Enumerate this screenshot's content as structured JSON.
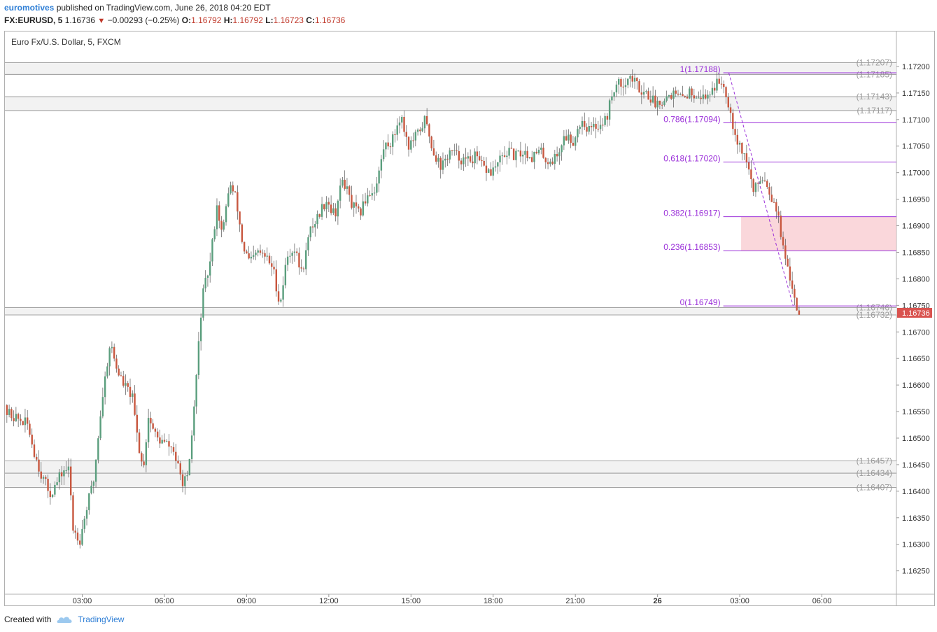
{
  "header": {
    "publisher": "euromotives",
    "published_text": "published on TradingView.com, June 26, 2018 04:20 EDT",
    "symbol": "FX:EURUSD, 5",
    "last": "1.16736",
    "change": "−0.00293 (−0.25%)",
    "o_label": "O:",
    "o_value": "1.16792",
    "h_label": "H:",
    "h_value": "1.16792",
    "l_label": "L:",
    "l_value": "1.16723",
    "c_label": "C:",
    "c_value": "1.16736"
  },
  "footer": {
    "created_with": "Created with",
    "brand": "TradingView"
  },
  "colors": {
    "up": "#5a9e7d",
    "down": "#c8573f",
    "fib": "#9b30d9",
    "zone": "#f8c9cf",
    "level_line": "#888888",
    "last_badge": "#d9534f"
  },
  "chart_data": {
    "type": "candlestick",
    "title": "Euro Fx/U.S. Dollar, 5, FXCM",
    "ylim": [
      1.16225,
      1.1723
    ],
    "y_ticks": [
      "1.17200",
      "1.17150",
      "1.17100",
      "1.17050",
      "1.17000",
      "1.16950",
      "1.16900",
      "1.16850",
      "1.16800",
      "1.16750",
      "1.16700",
      "1.16650",
      "1.16600",
      "1.16550",
      "1.16500",
      "1.16450",
      "1.16400",
      "1.16350",
      "1.16300",
      "1.16250"
    ],
    "x_ticks": [
      {
        "label": "03:00",
        "h": 3
      },
      {
        "label": "06:00",
        "h": 6
      },
      {
        "label": "09:00",
        "h": 9
      },
      {
        "label": "12:00",
        "h": 12
      },
      {
        "label": "15:00",
        "h": 15
      },
      {
        "label": "18:00",
        "h": 18
      },
      {
        "label": "21:00",
        "h": 21
      },
      {
        "label": "26",
        "h": 24,
        "bold": true
      },
      {
        "label": "03:00",
        "h": 27
      },
      {
        "label": "06:00",
        "h": 30
      }
    ],
    "last_price": "1.16736",
    "levels": [
      {
        "label": "(1.17207)",
        "price": 1.17207
      },
      {
        "label": "(1.17185)",
        "price": 1.17185
      },
      {
        "label": "(1.17143)",
        "price": 1.17143
      },
      {
        "label": "(1.17117)",
        "price": 1.17117
      },
      {
        "label": "(1.16746)",
        "price": 1.16746
      },
      {
        "label": "(1.16732)",
        "price": 1.16732
      },
      {
        "label": "(1.16457)",
        "price": 1.16457
      },
      {
        "label": "(1.16434)",
        "price": 1.16434
      },
      {
        "label": "(1.16407)",
        "price": 1.16407
      }
    ],
    "shaded_zones": [
      [
        1.17185,
        1.17207
      ],
      [
        1.17117,
        1.17143
      ],
      [
        1.16732,
        1.16746
      ],
      [
        1.16407,
        1.16457
      ]
    ],
    "fib_levels": [
      {
        "label": "1(1.17188)",
        "price": 1.17188
      },
      {
        "label": "0.786(1.17094)",
        "price": 1.17094
      },
      {
        "label": "0.618(1.17020)",
        "price": 1.1702
      },
      {
        "label": "0.382(1.16917)",
        "price": 1.16917
      },
      {
        "label": "0.236(1.16853)",
        "price": 1.16853
      },
      {
        "label": "0(1.16749)",
        "price": 1.16749
      }
    ],
    "fib_zone": [
      1.16853,
      1.16917
    ],
    "fib_trend": {
      "from": {
        "h": 26.6,
        "price": 1.17188
      },
      "to": {
        "h": 28.95,
        "price": 1.16749
      }
    },
    "key_points": [
      {
        "h": 0.0,
        "price": 1.1656
      },
      {
        "h": 0.6,
        "price": 1.1654
      },
      {
        "h": 1.1,
        "price": 1.16525
      },
      {
        "h": 1.3,
        "price": 1.1648
      },
      {
        "h": 1.6,
        "price": 1.1643
      },
      {
        "h": 1.9,
        "price": 1.16395
      },
      {
        "h": 2.1,
        "price": 1.1641
      },
      {
        "h": 2.4,
        "price": 1.1644
      },
      {
        "h": 2.6,
        "price": 1.1644
      },
      {
        "h": 2.75,
        "price": 1.1633
      },
      {
        "h": 3.0,
        "price": 1.1631
      },
      {
        "h": 3.25,
        "price": 1.1637
      },
      {
        "h": 3.5,
        "price": 1.1642
      },
      {
        "h": 3.8,
        "price": 1.1657
      },
      {
        "h": 4.1,
        "price": 1.1668
      },
      {
        "h": 4.35,
        "price": 1.1663
      },
      {
        "h": 4.6,
        "price": 1.166
      },
      {
        "h": 4.9,
        "price": 1.1658
      },
      {
        "h": 5.1,
        "price": 1.165
      },
      {
        "h": 5.3,
        "price": 1.1644
      },
      {
        "h": 5.5,
        "price": 1.1654
      },
      {
        "h": 5.8,
        "price": 1.165
      },
      {
        "h": 6.1,
        "price": 1.1649
      },
      {
        "h": 6.4,
        "price": 1.1648
      },
      {
        "h": 6.7,
        "price": 1.1642
      },
      {
        "h": 6.95,
        "price": 1.1642
      },
      {
        "h": 7.2,
        "price": 1.1658
      },
      {
        "h": 7.45,
        "price": 1.1676
      },
      {
        "h": 7.75,
        "price": 1.1683
      },
      {
        "h": 8.0,
        "price": 1.1694
      },
      {
        "h": 8.2,
        "price": 1.1688
      },
      {
        "h": 8.45,
        "price": 1.1698
      },
      {
        "h": 8.7,
        "price": 1.1695
      },
      {
        "h": 8.95,
        "price": 1.1686
      },
      {
        "h": 9.2,
        "price": 1.1683
      },
      {
        "h": 9.5,
        "price": 1.1685
      },
      {
        "h": 9.8,
        "price": 1.1684
      },
      {
        "h": 10.05,
        "price": 1.1682
      },
      {
        "h": 10.3,
        "price": 1.1675
      },
      {
        "h": 10.55,
        "price": 1.1684
      },
      {
        "h": 10.8,
        "price": 1.1686
      },
      {
        "h": 11.1,
        "price": 1.1681
      },
      {
        "h": 11.4,
        "price": 1.1689
      },
      {
        "h": 11.7,
        "price": 1.1692
      },
      {
        "h": 12.0,
        "price": 1.1695
      },
      {
        "h": 12.3,
        "price": 1.1692
      },
      {
        "h": 12.6,
        "price": 1.1699
      },
      {
        "h": 12.9,
        "price": 1.1694
      },
      {
        "h": 13.2,
        "price": 1.1692
      },
      {
        "h": 13.5,
        "price": 1.1696
      },
      {
        "h": 13.8,
        "price": 1.1697
      },
      {
        "h": 14.1,
        "price": 1.1705
      },
      {
        "h": 14.4,
        "price": 1.1706
      },
      {
        "h": 14.7,
        "price": 1.1711
      },
      {
        "h": 15.0,
        "price": 1.1705
      },
      {
        "h": 15.3,
        "price": 1.1707
      },
      {
        "h": 15.6,
        "price": 1.171
      },
      {
        "h": 15.9,
        "price": 1.1704
      },
      {
        "h": 16.2,
        "price": 1.1701
      },
      {
        "h": 16.5,
        "price": 1.1704
      },
      {
        "h": 16.8,
        "price": 1.1703
      },
      {
        "h": 17.1,
        "price": 1.1702
      },
      {
        "h": 17.4,
        "price": 1.1703
      },
      {
        "h": 17.7,
        "price": 1.1701
      },
      {
        "h": 18.0,
        "price": 1.17
      },
      {
        "h": 18.3,
        "price": 1.1702
      },
      {
        "h": 18.6,
        "price": 1.1704
      },
      {
        "h": 18.9,
        "price": 1.1703
      },
      {
        "h": 19.2,
        "price": 1.1704
      },
      {
        "h": 19.5,
        "price": 1.1703
      },
      {
        "h": 19.8,
        "price": 1.1704
      },
      {
        "h": 20.1,
        "price": 1.1702
      },
      {
        "h": 20.4,
        "price": 1.1703
      },
      {
        "h": 20.7,
        "price": 1.1707
      },
      {
        "h": 21.0,
        "price": 1.1706
      },
      {
        "h": 21.3,
        "price": 1.171
      },
      {
        "h": 21.6,
        "price": 1.1708
      },
      {
        "h": 21.9,
        "price": 1.1709
      },
      {
        "h": 22.2,
        "price": 1.171
      },
      {
        "h": 22.5,
        "price": 1.1716
      },
      {
        "h": 22.8,
        "price": 1.1717
      },
      {
        "h": 23.1,
        "price": 1.1718
      },
      {
        "h": 23.4,
        "price": 1.1716
      },
      {
        "h": 23.7,
        "price": 1.1715
      },
      {
        "h": 24.0,
        "price": 1.1713
      },
      {
        "h": 24.3,
        "price": 1.1714
      },
      {
        "h": 24.6,
        "price": 1.1715
      },
      {
        "h": 24.9,
        "price": 1.1714
      },
      {
        "h": 25.2,
        "price": 1.1715
      },
      {
        "h": 25.5,
        "price": 1.1715
      },
      {
        "h": 25.8,
        "price": 1.1714
      },
      {
        "h": 26.1,
        "price": 1.1716
      },
      {
        "h": 26.4,
        "price": 1.17175
      },
      {
        "h": 26.6,
        "price": 1.1715
      },
      {
        "h": 26.8,
        "price": 1.171
      },
      {
        "h": 27.0,
        "price": 1.1706
      },
      {
        "h": 27.2,
        "price": 1.1704
      },
      {
        "h": 27.4,
        "price": 1.1701
      },
      {
        "h": 27.6,
        "price": 1.1696
      },
      {
        "h": 27.8,
        "price": 1.1699
      },
      {
        "h": 28.0,
        "price": 1.1699
      },
      {
        "h": 28.2,
        "price": 1.1696
      },
      {
        "h": 28.4,
        "price": 1.1694
      },
      {
        "h": 28.6,
        "price": 1.1688
      },
      {
        "h": 28.75,
        "price": 1.1683
      },
      {
        "h": 28.9,
        "price": 1.168
      },
      {
        "h": 29.05,
        "price": 1.1678
      },
      {
        "h": 29.2,
        "price": 1.16736
      }
    ]
  }
}
